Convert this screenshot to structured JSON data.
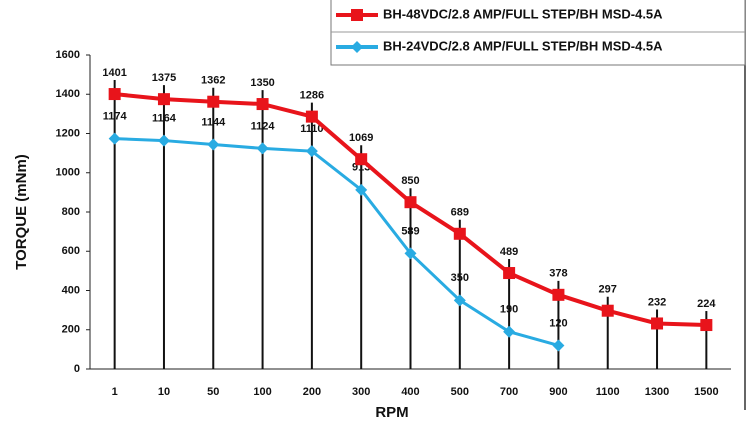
{
  "chart_data": {
    "type": "line",
    "x_label": "RPM",
    "y_label": "TORQUE (mNm)",
    "categories": [
      "1",
      "10",
      "50",
      "100",
      "200",
      "300",
      "400",
      "500",
      "700",
      "900",
      "1100",
      "1300",
      "1500"
    ],
    "series": [
      {
        "name": "BH-48VDC/2.8 AMP/FULL STEP/BH MSD-4.5A",
        "color": "#e8141b",
        "marker": "square",
        "values": [
          1401,
          1375,
          1362,
          1350,
          1286,
          1069,
          850,
          689,
          489,
          378,
          297,
          232,
          224
        ]
      },
      {
        "name": "BH-24VDC/2.8 AMP/FULL STEP/BH MSD-4.5A",
        "color": "#29abe2",
        "marker": "diamond",
        "values": [
          1174,
          1164,
          1144,
          1124,
          1110,
          913,
          589,
          350,
          190,
          120,
          null,
          null,
          null
        ]
      }
    ],
    "ylim": [
      0,
      1600
    ],
    "yticks": [
      0,
      200,
      400,
      600,
      800,
      1000,
      1200,
      1400,
      1600
    ],
    "legend": "top-right"
  }
}
